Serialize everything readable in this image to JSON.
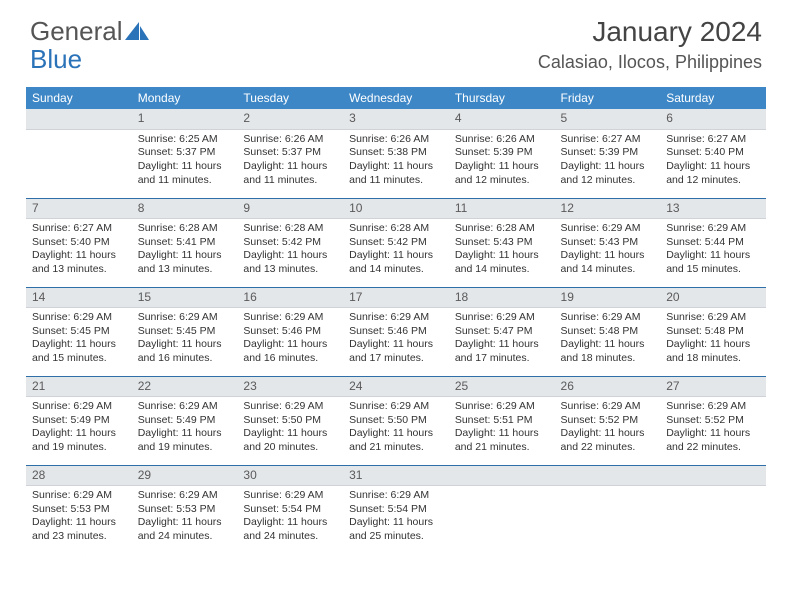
{
  "brand": {
    "part1": "General",
    "part2": "Blue"
  },
  "title": "January 2024",
  "location": "Calasiao, Ilocos, Philippines",
  "colors": {
    "header_bg": "#3d87c7",
    "header_text": "#ffffff",
    "daynum_bg": "#e4e7ea",
    "daynum_text": "#5a5a5a",
    "row_sep": "#2f6fa8",
    "body_text": "#333333",
    "page_bg": "#ffffff",
    "logo_gray": "#555555",
    "logo_blue": "#2b73b8"
  },
  "typography": {
    "title_fontsize": 28,
    "location_fontsize": 18,
    "dayhead_fontsize": 12,
    "daynum_fontsize": 12,
    "cell_fontsize": 10.5
  },
  "calendar": {
    "type": "table",
    "columns": [
      "Sunday",
      "Monday",
      "Tuesday",
      "Wednesday",
      "Thursday",
      "Friday",
      "Saturday"
    ],
    "weeks": [
      [
        null,
        {
          "n": "1",
          "sr": "Sunrise: 6:25 AM",
          "ss": "Sunset: 5:37 PM",
          "dl": "Daylight: 11 hours and 11 minutes."
        },
        {
          "n": "2",
          "sr": "Sunrise: 6:26 AM",
          "ss": "Sunset: 5:37 PM",
          "dl": "Daylight: 11 hours and 11 minutes."
        },
        {
          "n": "3",
          "sr": "Sunrise: 6:26 AM",
          "ss": "Sunset: 5:38 PM",
          "dl": "Daylight: 11 hours and 11 minutes."
        },
        {
          "n": "4",
          "sr": "Sunrise: 6:26 AM",
          "ss": "Sunset: 5:39 PM",
          "dl": "Daylight: 11 hours and 12 minutes."
        },
        {
          "n": "5",
          "sr": "Sunrise: 6:27 AM",
          "ss": "Sunset: 5:39 PM",
          "dl": "Daylight: 11 hours and 12 minutes."
        },
        {
          "n": "6",
          "sr": "Sunrise: 6:27 AM",
          "ss": "Sunset: 5:40 PM",
          "dl": "Daylight: 11 hours and 12 minutes."
        }
      ],
      [
        {
          "n": "7",
          "sr": "Sunrise: 6:27 AM",
          "ss": "Sunset: 5:40 PM",
          "dl": "Daylight: 11 hours and 13 minutes."
        },
        {
          "n": "8",
          "sr": "Sunrise: 6:28 AM",
          "ss": "Sunset: 5:41 PM",
          "dl": "Daylight: 11 hours and 13 minutes."
        },
        {
          "n": "9",
          "sr": "Sunrise: 6:28 AM",
          "ss": "Sunset: 5:42 PM",
          "dl": "Daylight: 11 hours and 13 minutes."
        },
        {
          "n": "10",
          "sr": "Sunrise: 6:28 AM",
          "ss": "Sunset: 5:42 PM",
          "dl": "Daylight: 11 hours and 14 minutes."
        },
        {
          "n": "11",
          "sr": "Sunrise: 6:28 AM",
          "ss": "Sunset: 5:43 PM",
          "dl": "Daylight: 11 hours and 14 minutes."
        },
        {
          "n": "12",
          "sr": "Sunrise: 6:29 AM",
          "ss": "Sunset: 5:43 PM",
          "dl": "Daylight: 11 hours and 14 minutes."
        },
        {
          "n": "13",
          "sr": "Sunrise: 6:29 AM",
          "ss": "Sunset: 5:44 PM",
          "dl": "Daylight: 11 hours and 15 minutes."
        }
      ],
      [
        {
          "n": "14",
          "sr": "Sunrise: 6:29 AM",
          "ss": "Sunset: 5:45 PM",
          "dl": "Daylight: 11 hours and 15 minutes."
        },
        {
          "n": "15",
          "sr": "Sunrise: 6:29 AM",
          "ss": "Sunset: 5:45 PM",
          "dl": "Daylight: 11 hours and 16 minutes."
        },
        {
          "n": "16",
          "sr": "Sunrise: 6:29 AM",
          "ss": "Sunset: 5:46 PM",
          "dl": "Daylight: 11 hours and 16 minutes."
        },
        {
          "n": "17",
          "sr": "Sunrise: 6:29 AM",
          "ss": "Sunset: 5:46 PM",
          "dl": "Daylight: 11 hours and 17 minutes."
        },
        {
          "n": "18",
          "sr": "Sunrise: 6:29 AM",
          "ss": "Sunset: 5:47 PM",
          "dl": "Daylight: 11 hours and 17 minutes."
        },
        {
          "n": "19",
          "sr": "Sunrise: 6:29 AM",
          "ss": "Sunset: 5:48 PM",
          "dl": "Daylight: 11 hours and 18 minutes."
        },
        {
          "n": "20",
          "sr": "Sunrise: 6:29 AM",
          "ss": "Sunset: 5:48 PM",
          "dl": "Daylight: 11 hours and 18 minutes."
        }
      ],
      [
        {
          "n": "21",
          "sr": "Sunrise: 6:29 AM",
          "ss": "Sunset: 5:49 PM",
          "dl": "Daylight: 11 hours and 19 minutes."
        },
        {
          "n": "22",
          "sr": "Sunrise: 6:29 AM",
          "ss": "Sunset: 5:49 PM",
          "dl": "Daylight: 11 hours and 19 minutes."
        },
        {
          "n": "23",
          "sr": "Sunrise: 6:29 AM",
          "ss": "Sunset: 5:50 PM",
          "dl": "Daylight: 11 hours and 20 minutes."
        },
        {
          "n": "24",
          "sr": "Sunrise: 6:29 AM",
          "ss": "Sunset: 5:50 PM",
          "dl": "Daylight: 11 hours and 21 minutes."
        },
        {
          "n": "25",
          "sr": "Sunrise: 6:29 AM",
          "ss": "Sunset: 5:51 PM",
          "dl": "Daylight: 11 hours and 21 minutes."
        },
        {
          "n": "26",
          "sr": "Sunrise: 6:29 AM",
          "ss": "Sunset: 5:52 PM",
          "dl": "Daylight: 11 hours and 22 minutes."
        },
        {
          "n": "27",
          "sr": "Sunrise: 6:29 AM",
          "ss": "Sunset: 5:52 PM",
          "dl": "Daylight: 11 hours and 22 minutes."
        }
      ],
      [
        {
          "n": "28",
          "sr": "Sunrise: 6:29 AM",
          "ss": "Sunset: 5:53 PM",
          "dl": "Daylight: 11 hours and 23 minutes."
        },
        {
          "n": "29",
          "sr": "Sunrise: 6:29 AM",
          "ss": "Sunset: 5:53 PM",
          "dl": "Daylight: 11 hours and 24 minutes."
        },
        {
          "n": "30",
          "sr": "Sunrise: 6:29 AM",
          "ss": "Sunset: 5:54 PM",
          "dl": "Daylight: 11 hours and 24 minutes."
        },
        {
          "n": "31",
          "sr": "Sunrise: 6:29 AM",
          "ss": "Sunset: 5:54 PM",
          "dl": "Daylight: 11 hours and 25 minutes."
        },
        null,
        null,
        null
      ]
    ]
  }
}
